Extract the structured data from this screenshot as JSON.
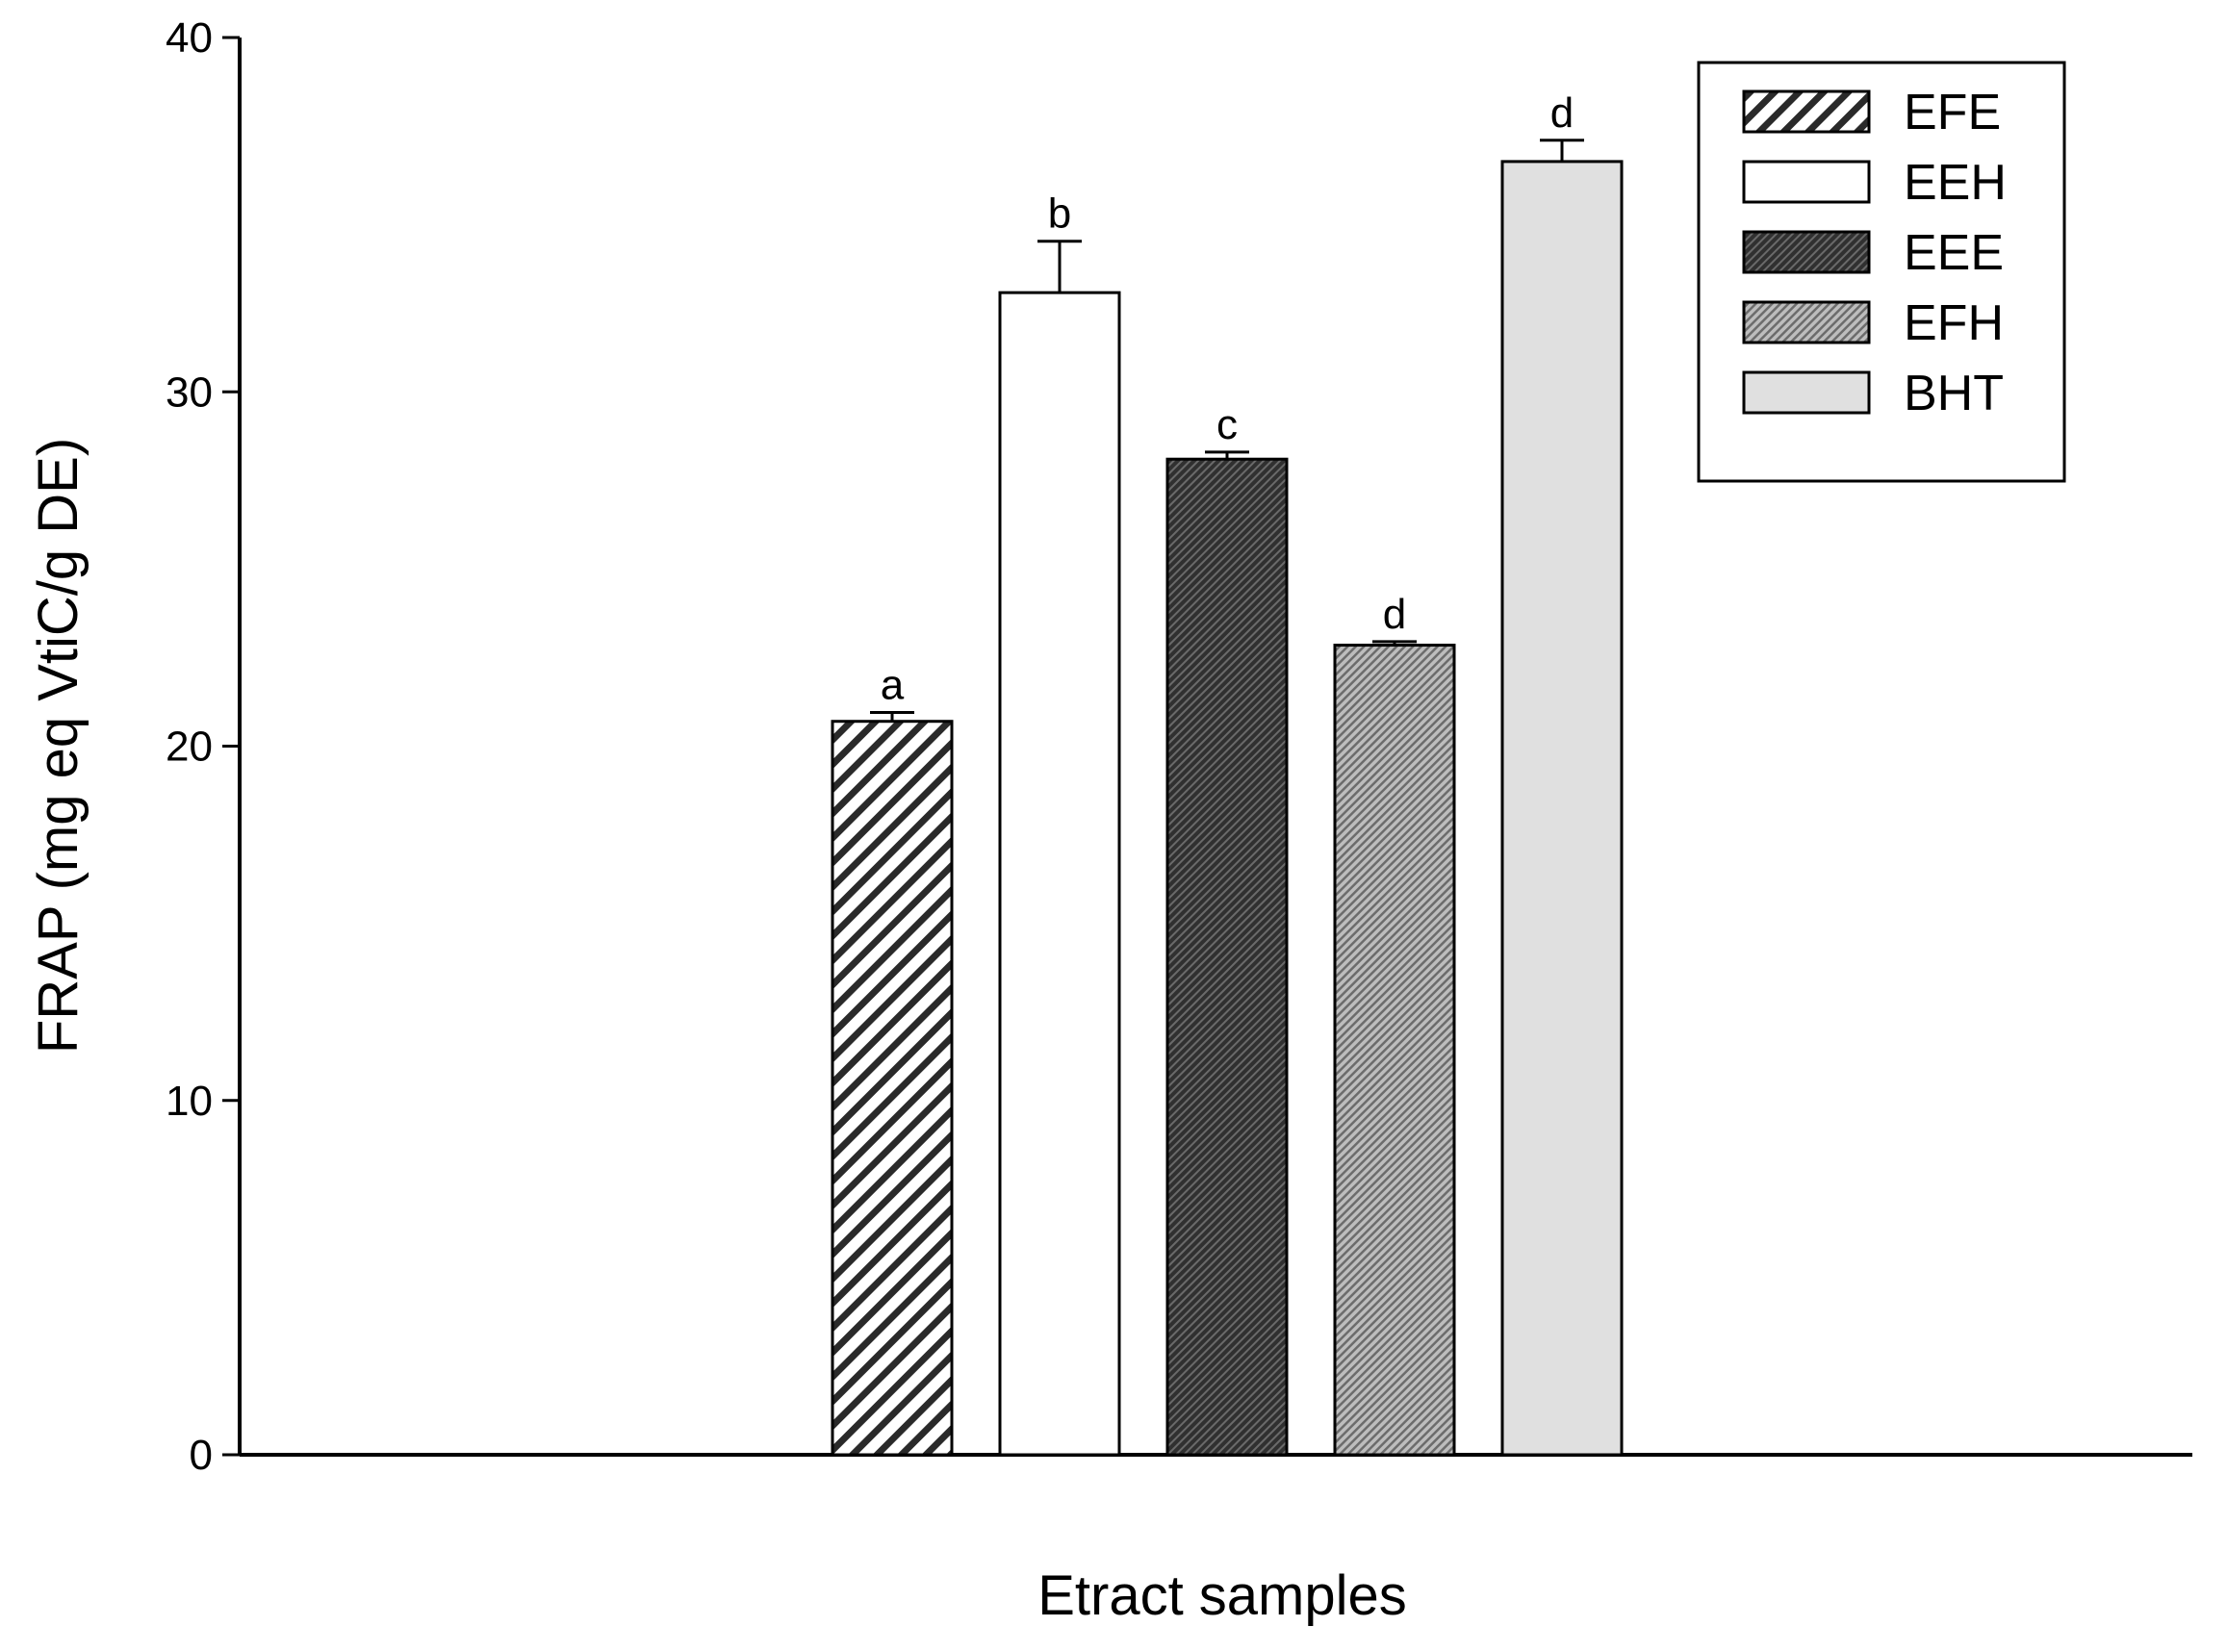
{
  "chart_data": {
    "type": "bar",
    "title": "",
    "xlabel": "Etract samples",
    "ylabel": "FRAP (mg eq VtiC/g DE)",
    "ylim": [
      0,
      40
    ],
    "yticks": [
      "0",
      "10",
      "20",
      "30",
      "40"
    ],
    "grid": false,
    "legend_position": "top-right",
    "series": [
      {
        "name": "EFE",
        "value": 20.7,
        "error": 0.25,
        "letter": "a",
        "pattern": "diagonal-hatch"
      },
      {
        "name": "EEH",
        "value": 32.8,
        "error": 1.45,
        "letter": "b",
        "pattern": "white"
      },
      {
        "name": "EEE",
        "value": 28.1,
        "error": 0.2,
        "letter": "c",
        "pattern": "dark-crosshatch"
      },
      {
        "name": "EFH",
        "value": 22.85,
        "error": 0.1,
        "letter": "d",
        "pattern": "light-crosshatch"
      },
      {
        "name": "BHT",
        "value": 36.5,
        "error": 0.6,
        "letter": "d",
        "pattern": "light-gray"
      }
    ]
  },
  "colors": {
    "axis": "#000000",
    "eeh_fill": "#ffffff",
    "bht_fill": "#e0e0e0",
    "eee_fill": "#3c3c3c",
    "efh_fill": "#9a9a9a"
  }
}
